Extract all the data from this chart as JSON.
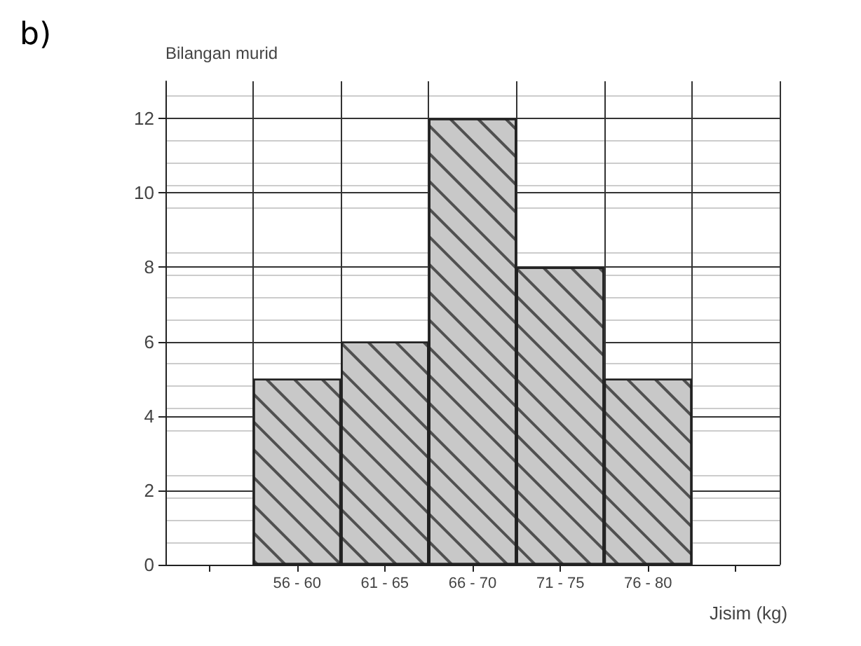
{
  "chart_data": {
    "type": "bar",
    "categories": [
      null,
      "56 - 60",
      "61 - 65",
      "66 - 70",
      "71 - 75",
      "76 - 80",
      null
    ],
    "values": [
      null,
      5,
      6,
      12,
      8,
      5,
      null
    ],
    "color": "#c8c8c8",
    "xlabel": "Jisim (kg)",
    "ylabel": "Bilangan murid",
    "ylim": [
      0,
      13
    ],
    "yticks": [
      0,
      2,
      4,
      6,
      8,
      10,
      12
    ],
    "grid": true,
    "annotations": [
      "b)"
    ]
  }
}
